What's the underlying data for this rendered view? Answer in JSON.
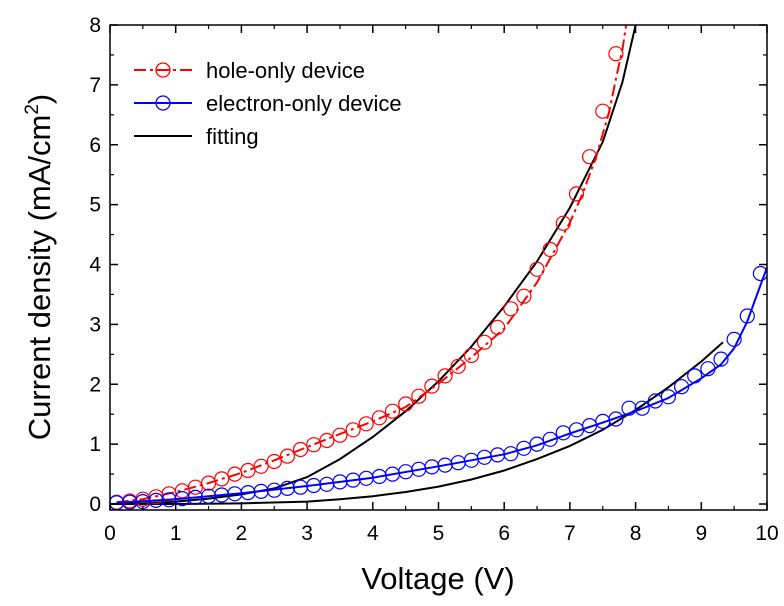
{
  "chart_data": {
    "type": "line",
    "xlabel": "Voltage (V)",
    "ylabel": "Current density (mA/cm",
    "ylabel_superscript": "2",
    "ylabel_suffix": ")",
    "xlim": [
      0,
      10
    ],
    "ylim": [
      -0.1,
      8
    ],
    "xticks": [
      0,
      1,
      2,
      3,
      4,
      5,
      6,
      7,
      8,
      9,
      10
    ],
    "yticks": [
      0,
      1,
      2,
      3,
      4,
      5,
      6,
      7,
      8
    ],
    "grid": false,
    "legend_position": "top-left",
    "series": [
      {
        "name": "hole-only device",
        "color": "#ff0000",
        "line_style": "dash-dot",
        "marker": "circle-open",
        "x": [
          0.1,
          0.3,
          0.5,
          0.7,
          0.9,
          1.1,
          1.3,
          1.5,
          1.7,
          1.9,
          2.1,
          2.3,
          2.5,
          2.7,
          2.9,
          3.1,
          3.3,
          3.5,
          3.7,
          3.9,
          4.1,
          4.3,
          4.5,
          4.7,
          4.9,
          5.1,
          5.3,
          5.5,
          5.7,
          5.9,
          6.1,
          6.3,
          6.5,
          6.7,
          6.9,
          7.1,
          7.3,
          7.5,
          7.7
        ],
        "y": [
          0.03,
          0.05,
          0.08,
          0.12,
          0.17,
          0.22,
          0.28,
          0.35,
          0.42,
          0.5,
          0.56,
          0.63,
          0.71,
          0.8,
          0.91,
          0.99,
          1.06,
          1.15,
          1.24,
          1.34,
          1.44,
          1.55,
          1.67,
          1.8,
          1.97,
          2.14,
          2.3,
          2.48,
          2.7,
          2.95,
          3.26,
          3.47,
          3.92,
          4.25,
          4.69,
          5.18,
          5.8,
          6.56,
          7.52
        ],
        "line_x": [
          0.1,
          0.5,
          1.0,
          1.5,
          2.0,
          2.5,
          3.0,
          3.5,
          4.0,
          4.5,
          5.0,
          5.5,
          6.0,
          6.5,
          7.0,
          7.2,
          7.4,
          7.6,
          7.7,
          7.8,
          7.85,
          7.9
        ],
        "line_y": [
          0.03,
          0.08,
          0.2,
          0.35,
          0.52,
          0.73,
          0.95,
          1.17,
          1.38,
          1.62,
          2.01,
          2.45,
          2.93,
          3.7,
          4.7,
          5.2,
          5.8,
          6.56,
          7.1,
          7.6,
          7.95,
          8.3
        ]
      },
      {
        "name": "electron-only device",
        "color": "#0000ff",
        "line_style": "solid",
        "marker": "circle-open",
        "x": [
          0.1,
          0.3,
          0.5,
          0.7,
          0.9,
          1.1,
          1.3,
          1.5,
          1.7,
          1.9,
          2.1,
          2.3,
          2.5,
          2.7,
          2.9,
          3.1,
          3.3,
          3.5,
          3.7,
          3.9,
          4.1,
          4.3,
          4.5,
          4.7,
          4.9,
          5.1,
          5.3,
          5.5,
          5.7,
          5.9,
          6.1,
          6.3,
          6.5,
          6.7,
          6.9,
          7.1,
          7.3,
          7.5,
          7.7,
          7.9,
          8.1,
          8.3,
          8.5,
          8.7,
          8.9,
          9.1,
          9.3,
          9.5,
          9.7,
          9.9
        ],
        "y": [
          0.02,
          0.03,
          0.04,
          0.06,
          0.07,
          0.09,
          0.11,
          0.13,
          0.15,
          0.17,
          0.19,
          0.21,
          0.23,
          0.26,
          0.28,
          0.31,
          0.33,
          0.37,
          0.4,
          0.43,
          0.46,
          0.5,
          0.54,
          0.58,
          0.62,
          0.65,
          0.69,
          0.73,
          0.78,
          0.82,
          0.84,
          0.93,
          1.0,
          1.08,
          1.19,
          1.24,
          1.31,
          1.38,
          1.42,
          1.6,
          1.6,
          1.72,
          1.79,
          1.96,
          2.14,
          2.26,
          2.42,
          2.75,
          3.14,
          3.85
        ],
        "line_x": [
          0.1,
          1.0,
          2.0,
          3.0,
          4.0,
          5.0,
          6.0,
          6.5,
          7.0,
          7.5,
          8.0,
          8.5,
          9.0,
          9.3,
          9.5,
          9.7,
          9.85,
          10.0
        ],
        "line_y": [
          0.02,
          0.08,
          0.18,
          0.3,
          0.44,
          0.63,
          0.83,
          0.98,
          1.18,
          1.36,
          1.55,
          1.77,
          2.1,
          2.33,
          2.6,
          3.05,
          3.5,
          3.95
        ]
      },
      {
        "name": "fitting",
        "color": "#000000",
        "line_style": "solid",
        "marker": "none",
        "curves": [
          {
            "x": [
              0.0,
              0.5,
              1.0,
              1.5,
              2.0,
              2.5,
              3.0,
              3.5,
              4.0,
              4.5,
              5.0,
              5.5,
              6.0,
              6.5,
              7.0,
              7.5,
              7.8,
              8.0
            ],
            "y": [
              0.0,
              0.01,
              0.04,
              0.09,
              0.16,
              0.26,
              0.45,
              0.75,
              1.12,
              1.55,
              2.05,
              2.63,
              3.3,
              4.05,
              4.95,
              6.05,
              7.05,
              8.0
            ]
          },
          {
            "x": [
              0.0,
              1.0,
              2.0,
              3.0,
              3.5,
              4.0,
              4.5,
              5.0,
              5.5,
              6.0,
              6.5,
              7.0,
              7.5,
              8.0,
              8.5,
              9.0,
              9.33
            ],
            "y": [
              0.0,
              0.0,
              0.01,
              0.04,
              0.08,
              0.13,
              0.2,
              0.29,
              0.41,
              0.56,
              0.75,
              0.97,
              1.24,
              1.57,
              1.95,
              2.38,
              2.7
            ]
          }
        ]
      }
    ]
  }
}
